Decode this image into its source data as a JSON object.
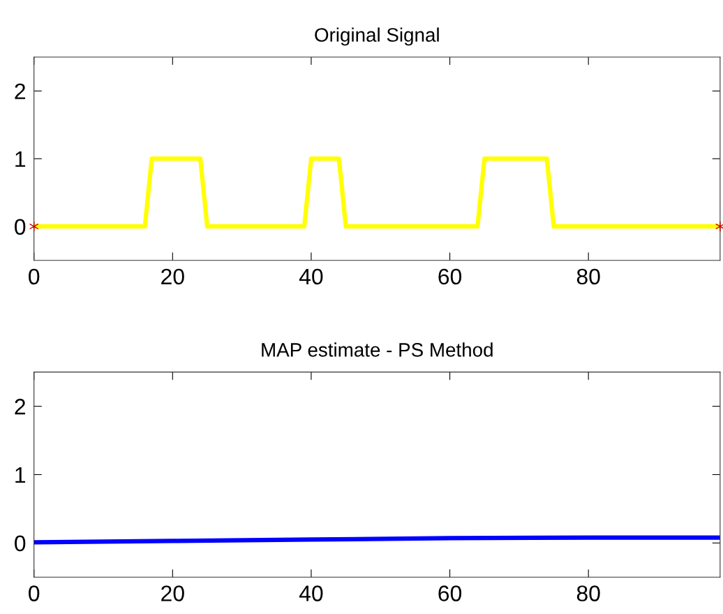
{
  "chart_data": [
    {
      "type": "line",
      "title": "Original Signal",
      "xlim": [
        0,
        99
      ],
      "ylim": [
        -0.5,
        2.5
      ],
      "xticks": [
        0,
        20,
        40,
        60,
        80
      ],
      "yticks": [
        0,
        1,
        2
      ],
      "series": [
        {
          "color": "#ffff00",
          "x": [
            0,
            16,
            17,
            24,
            25,
            39,
            40,
            44,
            45,
            64,
            65,
            74,
            75,
            99
          ],
          "values": [
            0,
            0,
            1,
            1,
            0,
            0,
            1,
            1,
            0,
            0,
            1,
            1,
            0,
            0
          ]
        },
        {
          "type": "scatter",
          "color": "#cc0000",
          "marker": "cross",
          "x": [
            0,
            99
          ],
          "values": [
            0,
            0
          ]
        }
      ]
    },
    {
      "type": "line",
      "title": "MAP estimate - PS Method",
      "xlim": [
        0,
        99
      ],
      "ylim": [
        -0.5,
        2.5
      ],
      "xticks": [
        0,
        20,
        40,
        60,
        80
      ],
      "yticks": [
        0,
        1,
        2
      ],
      "series": [
        {
          "color": "#0000ff",
          "x": [
            0,
            20,
            40,
            60,
            80,
            99
          ],
          "values": [
            0.01,
            0.03,
            0.05,
            0.07,
            0.08,
            0.08
          ]
        }
      ]
    }
  ]
}
